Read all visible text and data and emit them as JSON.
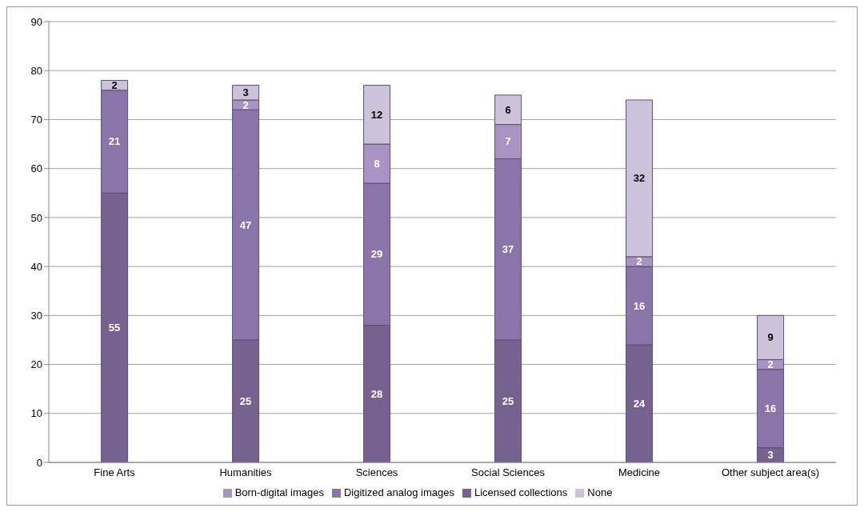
{
  "chart_data": {
    "type": "bar",
    "stacked": true,
    "categories": [
      "Fine Arts",
      "Humanities",
      "Sciences",
      "Social Sciences",
      "Medicine",
      "Other subject area(s)"
    ],
    "series": [
      {
        "name": "Licensed collections",
        "color": "#76628f",
        "values": [
          55,
          25,
          28,
          25,
          24,
          3
        ],
        "value_labels": [
          "55",
          "25",
          "28",
          "25",
          "24",
          "3"
        ]
      },
      {
        "name": "Digitized analog images",
        "color": "#8a75aa",
        "values": [
          21,
          47,
          29,
          37,
          16,
          16
        ],
        "value_labels": [
          "21",
          "47",
          "29",
          "37",
          "16",
          "16"
        ]
      },
      {
        "name": "Born-digital images",
        "color": "#a794c2",
        "values": [
          0,
          2,
          8,
          7,
          2,
          2
        ],
        "value_labels": [
          null,
          "2",
          "8",
          "7",
          "2",
          "2"
        ]
      },
      {
        "name": "None",
        "color": "#ccc3da",
        "values": [
          2,
          3,
          12,
          6,
          32,
          9
        ],
        "value_labels": [
          "2",
          "3",
          "12",
          "6",
          "32",
          "9"
        ]
      }
    ],
    "ylim": [
      0,
      90
    ],
    "yticks": [
      0,
      10,
      20,
      30,
      40,
      50,
      60,
      70,
      80,
      90
    ],
    "grid": "y",
    "legend": "bottom"
  }
}
